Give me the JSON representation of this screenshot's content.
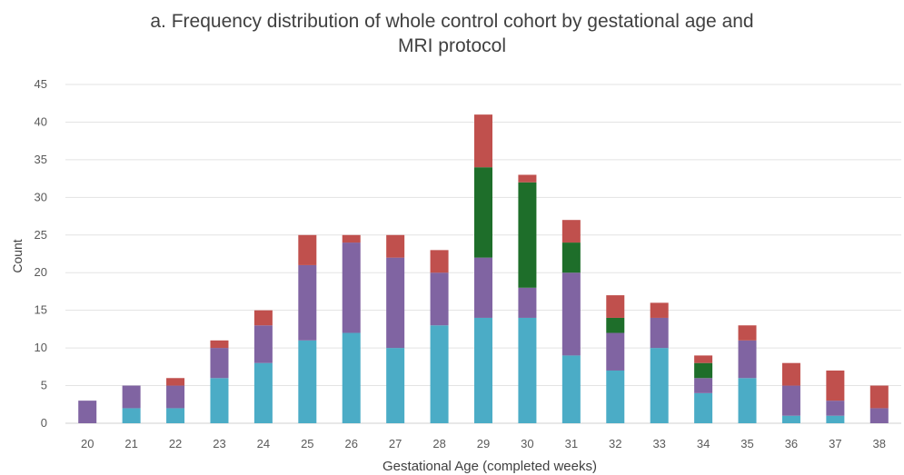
{
  "chart_data": {
    "type": "bar",
    "stacked": true,
    "title_lines": [
      "a. Frequency distribution of whole control cohort by gestational age and",
      "MRI protocol"
    ],
    "xlabel": "Gestational Age (completed weeks)",
    "ylabel": "Count",
    "ylim": [
      0,
      45
    ],
    "yticks": [
      0,
      5,
      10,
      15,
      20,
      25,
      30,
      35,
      40,
      45
    ],
    "grid": true,
    "legend": "none",
    "categories": [
      "20",
      "21",
      "22",
      "23",
      "24",
      "25",
      "26",
      "27",
      "28",
      "29",
      "30",
      "31",
      "32",
      "33",
      "34",
      "35",
      "36",
      "37",
      "38"
    ],
    "series": [
      {
        "color": "#4bacc6",
        "values": [
          0,
          2,
          2,
          6,
          8,
          11,
          12,
          10,
          13,
          14,
          14,
          9,
          7,
          10,
          4,
          6,
          1,
          1,
          0
        ]
      },
      {
        "color": "#8064a2",
        "values": [
          3,
          3,
          3,
          4,
          5,
          10,
          12,
          12,
          7,
          8,
          4,
          11,
          5,
          4,
          2,
          5,
          4,
          2,
          2
        ]
      },
      {
        "color": "#1e6e2a",
        "values": [
          0,
          0,
          0,
          0,
          0,
          0,
          0,
          0,
          0,
          12,
          14,
          4,
          2,
          0,
          2,
          0,
          0,
          0,
          0
        ]
      },
      {
        "color": "#c0504d",
        "values": [
          0,
          0,
          1,
          1,
          2,
          4,
          1,
          3,
          3,
          7,
          1,
          3,
          3,
          2,
          1,
          2,
          3,
          4,
          3
        ]
      }
    ]
  }
}
